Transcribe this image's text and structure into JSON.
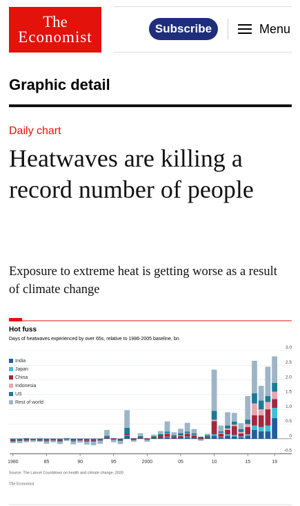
{
  "header": {
    "logo": [
      "The",
      "Economist"
    ],
    "subscribe": "Subscribe",
    "menu": "Menu"
  },
  "section": "Graphic detail",
  "article": {
    "kicker": "Daily chart",
    "headline": "Heatwaves are killing a record number of people",
    "standfirst": "Exposure to extreme heat is getting worse as a result of climate change"
  },
  "chart_data": {
    "type": "bar",
    "stacked": true,
    "title": "Hot fuss",
    "subtitle": "Days of heatwaves experienced by over 65s, relative to 1986-2005 baseline, bn",
    "source": "Source: The Lancet Countdown on health and climate change, 2020",
    "credit": "The Economist",
    "categories": [
      "1980",
      null,
      null,
      null,
      null,
      "85",
      null,
      null,
      null,
      null,
      "90",
      null,
      null,
      null,
      null,
      "95",
      null,
      null,
      null,
      null,
      "2000",
      null,
      null,
      null,
      null,
      "05",
      null,
      null,
      null,
      null,
      "10",
      null,
      null,
      null,
      null,
      "15",
      null,
      null,
      null,
      "19"
    ],
    "series": [
      {
        "name": "India",
        "color": "#1f5f9e",
        "values": [
          -0.05,
          -0.03,
          -0.04,
          -0.02,
          -0.05,
          -0.04,
          -0.03,
          -0.05,
          -0.02,
          -0.04,
          -0.03,
          -0.04,
          -0.05,
          -0.03,
          0.02,
          -0.02,
          -0.04,
          0.1,
          -0.03,
          0.03,
          -0.02,
          0.02,
          0.03,
          0.05,
          0.02,
          0.04,
          0.05,
          0.03,
          -0.02,
          0.02,
          0.1,
          0.05,
          0.1,
          0.08,
          0.05,
          0.1,
          0.3,
          0.25,
          0.25,
          0.7
        ]
      },
      {
        "name": "Japan",
        "color": "#3ebfd8",
        "values": [
          0,
          0,
          0,
          0,
          0,
          0,
          0,
          0,
          0,
          0,
          0,
          0,
          0,
          0,
          0,
          0,
          0,
          0.02,
          0,
          0,
          0,
          0,
          0,
          0.02,
          0,
          0,
          0.02,
          0,
          0,
          0,
          0.05,
          0.02,
          0.05,
          0.05,
          0.03,
          0.05,
          0.15,
          0.15,
          0.2,
          0.35
        ]
      },
      {
        "name": "China",
        "color": "#a3283f",
        "values": [
          -0.03,
          -0.02,
          -0.03,
          -0.02,
          -0.02,
          -0.03,
          -0.02,
          -0.03,
          -0.01,
          -0.02,
          -0.02,
          -0.03,
          -0.03,
          -0.02,
          0.03,
          0.02,
          -0.02,
          0.05,
          0.02,
          0.03,
          0.02,
          0.05,
          0.08,
          0.1,
          0.05,
          0.05,
          0.1,
          0.08,
          0.05,
          0.05,
          0.45,
          0.1,
          0.15,
          0.3,
          0.1,
          0.25,
          0.35,
          0.4,
          0.55,
          0.3
        ]
      },
      {
        "name": "Indonesia",
        "color": "#e6a7b1",
        "values": [
          0,
          0,
          0,
          0,
          0,
          0,
          0,
          0,
          0,
          0,
          0,
          0,
          0,
          0,
          0,
          0,
          0,
          0,
          0,
          0,
          0,
          0,
          0,
          0.02,
          0,
          0.02,
          0.02,
          0.02,
          0,
          0,
          0.05,
          0.03,
          0.05,
          0.05,
          0.05,
          0.1,
          0.4,
          0.2,
          0.25,
          0.25
        ]
      },
      {
        "name": "US",
        "color": "#1a7b96",
        "values": [
          -0.02,
          -0.03,
          0.02,
          -0.02,
          -0.02,
          -0.02,
          -0.02,
          -0.02,
          0.02,
          -0.03,
          -0.02,
          -0.03,
          -0.02,
          -0.02,
          0.05,
          -0.02,
          -0.02,
          0.2,
          -0.02,
          0.03,
          -0.02,
          0.02,
          0.05,
          0.05,
          0.05,
          0.08,
          0.05,
          0.05,
          0.02,
          0.05,
          0.3,
          0.05,
          0.1,
          0.1,
          0.1,
          0.15,
          0.35,
          0.3,
          0.2,
          0.3
        ]
      },
      {
        "name": "Rest of world",
        "color": "#9db5c7",
        "values": [
          -0.05,
          -0.07,
          -0.05,
          -0.05,
          0.03,
          -0.08,
          -0.05,
          -0.08,
          -0.05,
          -0.1,
          -0.06,
          -0.1,
          -0.12,
          -0.1,
          0.2,
          -0.08,
          -0.1,
          0.6,
          -0.05,
          0.1,
          -0.06,
          0.05,
          0.1,
          0.35,
          0.1,
          0.15,
          0.3,
          0.15,
          -0.05,
          0.05,
          1.4,
          0.2,
          0.45,
          0.3,
          0.2,
          0.8,
          1.1,
          0.5,
          1.0,
          0.9
        ]
      }
    ],
    "ylim": [
      -0.5,
      3
    ],
    "yticks": [
      -0.5,
      0,
      0.5,
      {
        "value": 1,
        "label": "1.0"
      },
      1.5,
      {
        "value": 2,
        "label": "2.0"
      },
      2.5,
      {
        "value": 3,
        "label": "3.0"
      }
    ],
    "grid": true,
    "legend": "upper left"
  }
}
